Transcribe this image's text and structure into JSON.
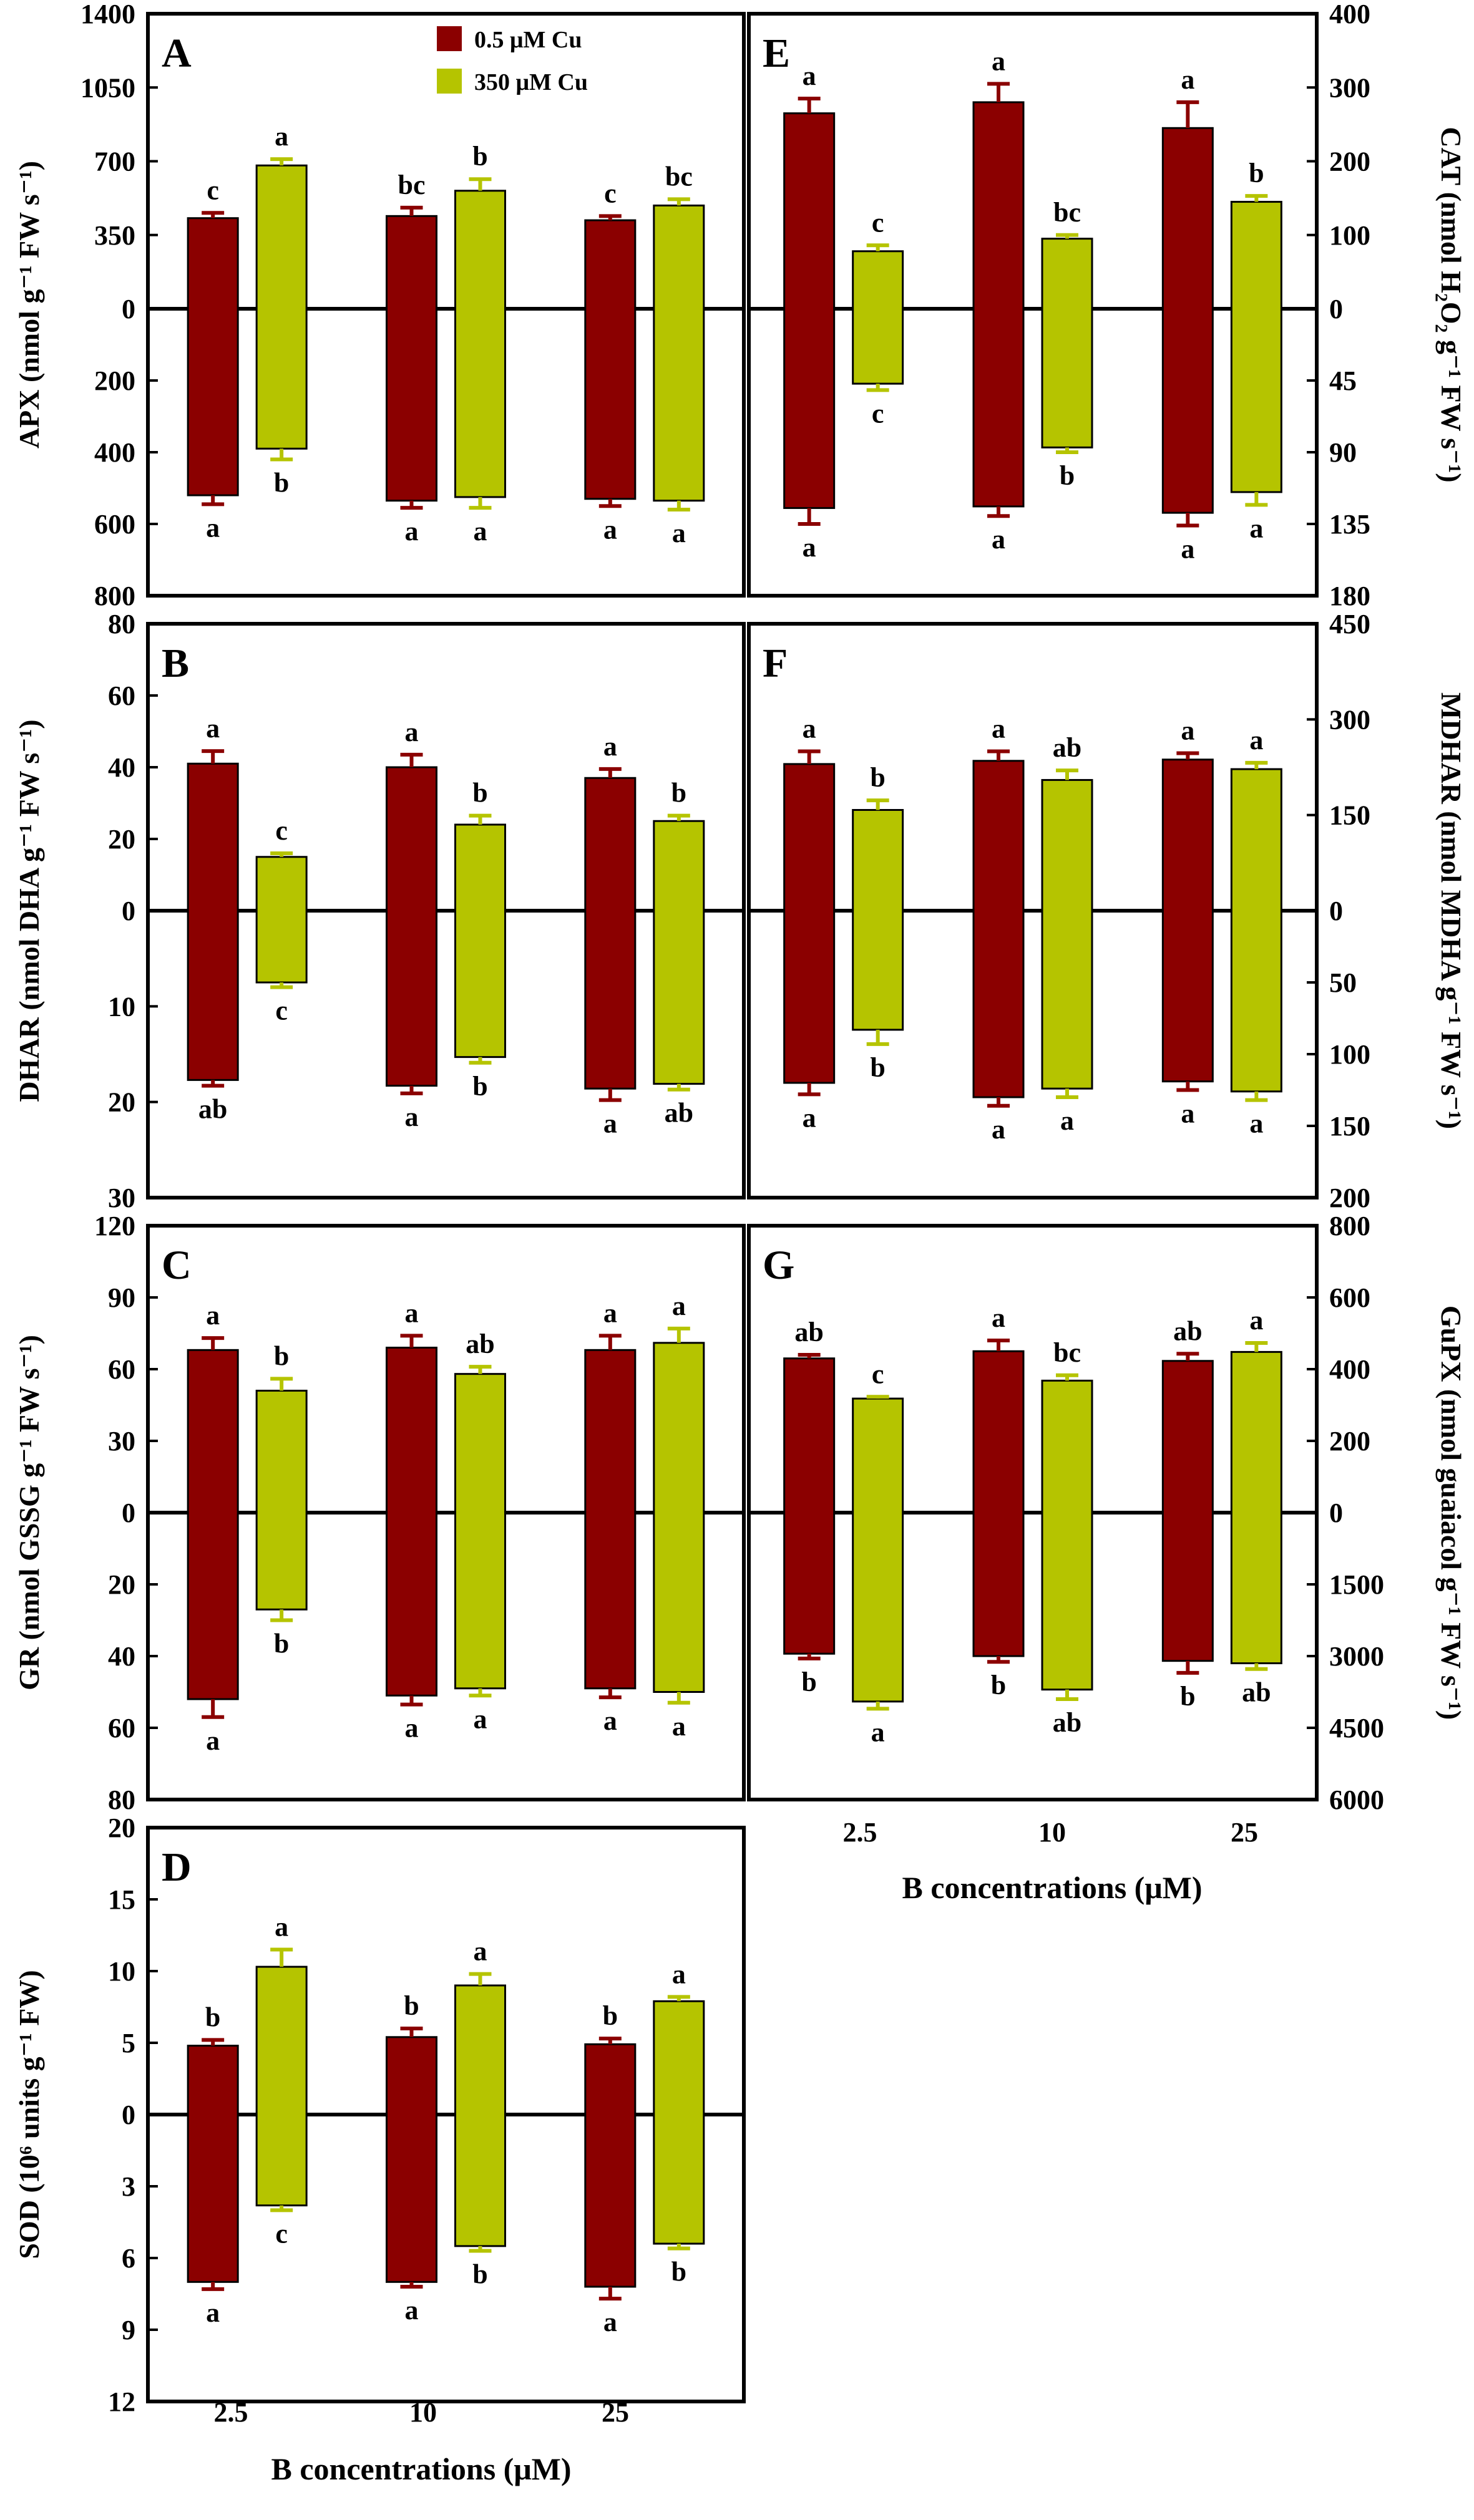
{
  "legend": {
    "items": [
      {
        "label": "0.5 μM Cu",
        "color": "#8b0000"
      },
      {
        "label": "350 μM Cu",
        "color": "#b5c400"
      }
    ]
  },
  "x_axis": {
    "categories": [
      "2.5",
      "10",
      "25"
    ],
    "label_left": "B concentrations (μM)",
    "label_right": "B concentrations (μM)"
  },
  "chart_data": [
    {
      "panel": "A",
      "type": "bar",
      "ylabel": "APX (nmol g⁻¹ FW s⁻¹)",
      "categories": [
        "2.5",
        "10",
        "25"
      ],
      "top_ticks": [
        "0",
        "350",
        "700",
        "1050",
        "1400"
      ],
      "bottom_ticks": [
        "200",
        "400",
        "600",
        "800"
      ],
      "top_max": 1400,
      "bottom_max": 800,
      "series": [
        {
          "name": "0.5 μM Cu",
          "color": "#8b0000",
          "top": [
            430,
            440,
            420
          ],
          "top_err": [
            25,
            40,
            20
          ],
          "bottom": [
            520,
            535,
            530
          ],
          "bottom_err": [
            25,
            20,
            20
          ],
          "top_sig": [
            "c",
            "bc",
            "c"
          ],
          "bottom_sig": [
            "a",
            "a",
            "a"
          ]
        },
        {
          "name": "350 μM Cu",
          "color": "#b5c400",
          "top": [
            680,
            560,
            490
          ],
          "top_err": [
            30,
            55,
            30
          ],
          "bottom": [
            390,
            525,
            535
          ],
          "bottom_err": [
            30,
            30,
            25
          ],
          "top_sig": [
            "a",
            "b",
            "bc"
          ],
          "bottom_sig": [
            "b",
            "a",
            "a"
          ]
        }
      ]
    },
    {
      "panel": "B",
      "type": "bar",
      "ylabel": "DHAR (nmol DHA g⁻¹ FW s⁻¹)",
      "categories": [
        "2.5",
        "10",
        "25"
      ],
      "top_ticks": [
        "0",
        "20",
        "40",
        "60",
        "80"
      ],
      "bottom_ticks": [
        "10",
        "20",
        "30"
      ],
      "top_max": 80,
      "bottom_max": 30,
      "series": [
        {
          "name": "0.5 μM Cu",
          "color": "#8b0000",
          "top": [
            41,
            40,
            37
          ],
          "top_err": [
            3.5,
            3.5,
            2.5
          ],
          "bottom": [
            17.7,
            18.3,
            18.6
          ],
          "bottom_err": [
            0.6,
            0.8,
            1.2
          ],
          "top_sig": [
            "a",
            "a",
            "a"
          ],
          "bottom_sig": [
            "ab",
            "a",
            "a"
          ]
        },
        {
          "name": "350 μM Cu",
          "color": "#b5c400",
          "top": [
            15,
            24,
            25
          ],
          "top_err": [
            1,
            2.5,
            1.5
          ],
          "bottom": [
            7.5,
            15.3,
            18.1
          ],
          "bottom_err": [
            0.5,
            0.6,
            0.6
          ],
          "top_sig": [
            "c",
            "b",
            "b"
          ],
          "bottom_sig": [
            "c",
            "b",
            "ab"
          ]
        }
      ]
    },
    {
      "panel": "C",
      "type": "bar",
      "ylabel": "GR (nmol GSSG g⁻¹ FW s⁻¹)",
      "categories": [
        "2.5",
        "10",
        "25"
      ],
      "top_ticks": [
        "0",
        "30",
        "60",
        "90",
        "120"
      ],
      "bottom_ticks": [
        "20",
        "40",
        "60",
        "80"
      ],
      "top_max": 120,
      "bottom_max": 80,
      "series": [
        {
          "name": "0.5 μM Cu",
          "color": "#8b0000",
          "top": [
            68,
            69,
            68
          ],
          "top_err": [
            5,
            5,
            6
          ],
          "bottom": [
            52,
            51,
            49
          ],
          "bottom_err": [
            5,
            2.5,
            2.5
          ],
          "top_sig": [
            "a",
            "a",
            "a"
          ],
          "bottom_sig": [
            "a",
            "a",
            "a"
          ]
        },
        {
          "name": "350 μM Cu",
          "color": "#b5c400",
          "top": [
            51,
            58,
            71
          ],
          "top_err": [
            5,
            3,
            6
          ],
          "bottom": [
            27,
            49,
            50
          ],
          "bottom_err": [
            3,
            2,
            3
          ],
          "top_sig": [
            "b",
            "ab",
            "a"
          ],
          "bottom_sig": [
            "b",
            "a",
            "a"
          ]
        }
      ]
    },
    {
      "panel": "D",
      "type": "bar",
      "ylabel": "SOD (10⁶ units g⁻¹ FW)",
      "categories": [
        "2.5",
        "10",
        "25"
      ],
      "top_ticks": [
        "0",
        "5",
        "10",
        "15",
        "20"
      ],
      "bottom_ticks": [
        "3",
        "6",
        "9",
        "12"
      ],
      "top_max": 20,
      "bottom_max": 12,
      "series": [
        {
          "name": "0.5 μM Cu",
          "color": "#8b0000",
          "top": [
            4.8,
            5.4,
            4.9
          ],
          "top_err": [
            0.4,
            0.6,
            0.4
          ],
          "bottom": [
            7.0,
            7.0,
            7.2
          ],
          "bottom_err": [
            0.3,
            0.2,
            0.5
          ],
          "top_sig": [
            "b",
            "b",
            "b"
          ],
          "bottom_sig": [
            "a",
            "a",
            "a"
          ]
        },
        {
          "name": "350 μM Cu",
          "color": "#b5c400",
          "top": [
            10.3,
            9.0,
            7.9
          ],
          "top_err": [
            1.2,
            0.8,
            0.3
          ],
          "bottom": [
            3.8,
            5.5,
            5.4
          ],
          "bottom_err": [
            0.2,
            0.2,
            0.2
          ],
          "top_sig": [
            "a",
            "a",
            "a"
          ],
          "bottom_sig": [
            "c",
            "b",
            "b"
          ]
        }
      ]
    },
    {
      "panel": "E",
      "type": "bar",
      "ylabel": "CAT (nmol H₂O₂ g⁻¹ FW s⁻¹)",
      "categories": [
        "2.5",
        "10",
        "25"
      ],
      "top_ticks": [
        "0",
        "100",
        "200",
        "300",
        "400"
      ],
      "bottom_ticks": [
        "45",
        "90",
        "135",
        "180"
      ],
      "top_max": 400,
      "bottom_max": 180,
      "series": [
        {
          "name": "0.5 μM Cu",
          "color": "#8b0000",
          "top": [
            265,
            280,
            245
          ],
          "top_err": [
            20,
            25,
            35
          ],
          "bottom": [
            125,
            124,
            128
          ],
          "bottom_err": [
            10,
            6,
            8
          ],
          "top_sig": [
            "a",
            "a",
            "a"
          ],
          "bottom_sig": [
            "a",
            "a",
            "a"
          ]
        },
        {
          "name": "350 μM Cu",
          "color": "#b5c400",
          "top": [
            78,
            95,
            145
          ],
          "top_err": [
            8,
            5,
            8
          ],
          "bottom": [
            47,
            87,
            115
          ],
          "bottom_err": [
            4,
            3,
            8
          ],
          "top_sig": [
            "c",
            "bc",
            "b"
          ],
          "bottom_sig": [
            "c",
            "b",
            "a"
          ]
        }
      ]
    },
    {
      "panel": "F",
      "type": "bar",
      "ylabel": "MDHAR (nmol MDHA g⁻¹ FW s⁻¹)",
      "categories": [
        "2.5",
        "10",
        "25"
      ],
      "top_ticks": [
        "0",
        "150",
        "300",
        "450"
      ],
      "bottom_ticks": [
        "50",
        "100",
        "150",
        "200"
      ],
      "top_max": 450,
      "bottom_max": 200,
      "series": [
        {
          "name": "0.5 μM Cu",
          "color": "#8b0000",
          "top": [
            230,
            235,
            237
          ],
          "top_err": [
            20,
            15,
            10
          ],
          "bottom": [
            120,
            130,
            119
          ],
          "bottom_err": [
            8,
            6,
            6
          ],
          "top_sig": [
            "a",
            "a",
            "a"
          ],
          "bottom_sig": [
            "a",
            "a",
            "a"
          ]
        },
        {
          "name": "350 μM Cu",
          "color": "#b5c400",
          "top": [
            158,
            205,
            222
          ],
          "top_err": [
            15,
            15,
            10
          ],
          "bottom": [
            83,
            124,
            126
          ],
          "bottom_err": [
            10,
            6,
            6
          ],
          "top_sig": [
            "b",
            "ab",
            "a"
          ],
          "bottom_sig": [
            "b",
            "a",
            "a"
          ]
        }
      ]
    },
    {
      "panel": "G",
      "type": "bar",
      "ylabel": "GuPX (nmol guaiacol g⁻¹ FW s⁻¹)",
      "categories": [
        "2.5",
        "10",
        "25"
      ],
      "top_ticks": [
        "0",
        "200",
        "400",
        "600",
        "800"
      ],
      "bottom_ticks": [
        "1500",
        "3000",
        "4500",
        "6000"
      ],
      "top_max": 800,
      "bottom_max": 6000,
      "series": [
        {
          "name": "0.5 μM Cu",
          "color": "#8b0000",
          "top": [
            430,
            450,
            423
          ],
          "top_err": [
            10,
            30,
            20
          ],
          "bottom": [
            2950,
            3000,
            3100
          ],
          "bottom_err": [
            100,
            120,
            250
          ],
          "top_sig": [
            "ab",
            "a",
            "ab"
          ],
          "bottom_sig": [
            "b",
            "b",
            "b"
          ]
        },
        {
          "name": "350 μM Cu",
          "color": "#b5c400",
          "top": [
            318,
            368,
            448
          ],
          "top_err": [
            5,
            15,
            25
          ],
          "bottom": [
            3950,
            3700,
            3150
          ],
          "bottom_err": [
            150,
            200,
            120
          ],
          "top_sig": [
            "c",
            "bc",
            "a"
          ],
          "bottom_sig": [
            "a",
            "ab",
            "ab"
          ]
        }
      ]
    }
  ]
}
